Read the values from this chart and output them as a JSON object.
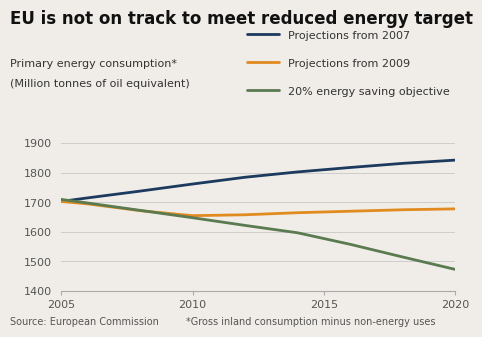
{
  "title": "EU is not on track to meet reduced energy target",
  "ylabel_line1": "Primary energy consumption*",
  "ylabel_line2": "(Million tonnes of oil equivalent)",
  "source_left": "Source: European Commission",
  "source_right": "*Gross inland consumption minus non-energy uses",
  "x": [
    2005,
    2006,
    2008,
    2010,
    2012,
    2014,
    2016,
    2018,
    2020
  ],
  "proj2007": [
    1703,
    1715,
    1738,
    1762,
    1785,
    1803,
    1818,
    1832,
    1843
  ],
  "proj2009": [
    1703,
    1695,
    1672,
    1655,
    1658,
    1665,
    1670,
    1675,
    1678
  ],
  "saving20": [
    1710,
    1698,
    1673,
    1648,
    1622,
    1597,
    1558,
    1515,
    1473
  ],
  "color_proj2007": "#1c3a5e",
  "color_proj2009": "#e08a20",
  "color_saving20": "#5a7a50",
  "legend_labels": [
    "Projections from 2007",
    "Projections from 2009",
    "20% energy saving objective"
  ],
  "xlim": [
    2005,
    2020
  ],
  "ylim": [
    1400,
    1920
  ],
  "yticks": [
    1400,
    1500,
    1600,
    1700,
    1800,
    1900
  ],
  "xticks": [
    2005,
    2010,
    2015,
    2020
  ],
  "bg_color": "#f0ede8",
  "grid_color": "#cccccc",
  "line_width": 2.0,
  "title_fontsize": 12,
  "label_fontsize": 8,
  "legend_fontsize": 8,
  "source_fontsize": 7,
  "tick_fontsize": 8
}
